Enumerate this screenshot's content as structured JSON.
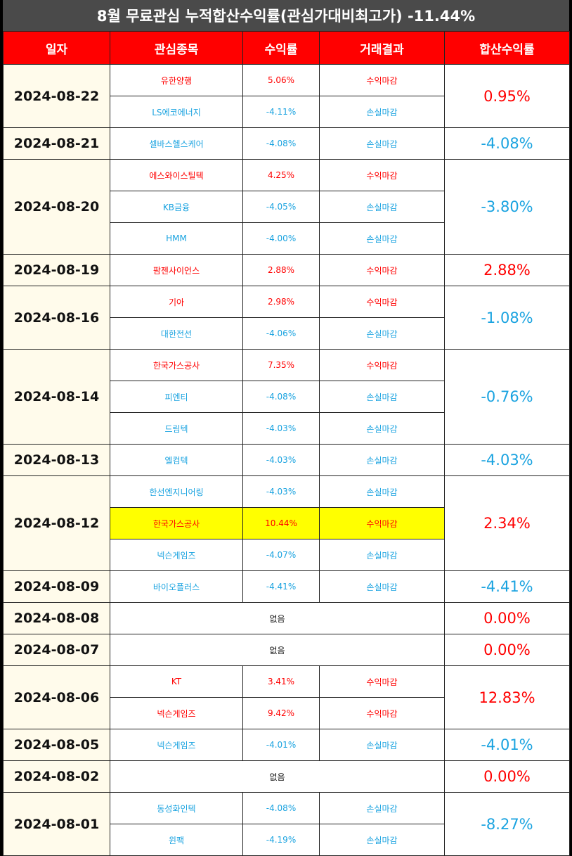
{
  "title": "8월 무료관심 누적합산수익률(관심가대비최고가) -11.44%",
  "headers": [
    "일자",
    "관심종목",
    "수익률",
    "거래결과",
    "합산수익률"
  ],
  "colors": {
    "gain": "#ff0000",
    "loss": "#1aa3e0",
    "header_bg": "#ff0000",
    "highlight": "#ffff00",
    "date_bg": "#fffbeb"
  },
  "groups": [
    {
      "date": "2024-08-22",
      "total": "0.95%",
      "total_type": "gain",
      "rows": [
        {
          "name": "유한양행",
          "rate": "5.06%",
          "result": "수익마감",
          "type": "gain"
        },
        {
          "name": "LS에코에너지",
          "rate": "-4.11%",
          "result": "손실마감",
          "type": "loss"
        }
      ]
    },
    {
      "date": "2024-08-21",
      "total": "-4.08%",
      "total_type": "loss",
      "rows": [
        {
          "name": "셀바스헬스케어",
          "rate": "-4.08%",
          "result": "손실마감",
          "type": "loss"
        }
      ]
    },
    {
      "date": "2024-08-20",
      "total": "-3.80%",
      "total_type": "loss",
      "rows": [
        {
          "name": "에스와이스틸텍",
          "rate": "4.25%",
          "result": "수익마감",
          "type": "gain"
        },
        {
          "name": "KB금융",
          "rate": "-4.05%",
          "result": "손실마감",
          "type": "loss"
        },
        {
          "name": "HMM",
          "rate": "-4.00%",
          "result": "손실마감",
          "type": "loss"
        }
      ]
    },
    {
      "date": "2024-08-19",
      "total": "2.88%",
      "total_type": "gain",
      "rows": [
        {
          "name": "팜젠사이언스",
          "rate": "2.88%",
          "result": "수익마감",
          "type": "gain"
        }
      ]
    },
    {
      "date": "2024-08-16",
      "total": "-1.08%",
      "total_type": "loss",
      "rows": [
        {
          "name": "기아",
          "rate": "2.98%",
          "result": "수익마감",
          "type": "gain"
        },
        {
          "name": "대한전선",
          "rate": "-4.06%",
          "result": "손실마감",
          "type": "loss"
        }
      ]
    },
    {
      "date": "2024-08-14",
      "total": "-0.76%",
      "total_type": "loss",
      "rows": [
        {
          "name": "한국가스공사",
          "rate": "7.35%",
          "result": "수익마감",
          "type": "gain"
        },
        {
          "name": "피엔티",
          "rate": "-4.08%",
          "result": "손실마감",
          "type": "loss"
        },
        {
          "name": "드림텍",
          "rate": "-4.03%",
          "result": "손실마감",
          "type": "loss"
        }
      ]
    },
    {
      "date": "2024-08-13",
      "total": "-4.03%",
      "total_type": "loss",
      "rows": [
        {
          "name": "엘컴텍",
          "rate": "-4.03%",
          "result": "손실마감",
          "type": "loss"
        }
      ]
    },
    {
      "date": "2024-08-12",
      "total": "2.34%",
      "total_type": "gain",
      "rows": [
        {
          "name": "한선엔지니어링",
          "rate": "-4.03%",
          "result": "손실마감",
          "type": "loss"
        },
        {
          "name": "한국가스공사",
          "rate": "10.44%",
          "result": "수익마감",
          "type": "gain",
          "highlight": true
        },
        {
          "name": "넥슨게임즈",
          "rate": "-4.07%",
          "result": "손실마감",
          "type": "loss"
        }
      ]
    },
    {
      "date": "2024-08-09",
      "total": "-4.41%",
      "total_type": "loss",
      "rows": [
        {
          "name": "바이오플러스",
          "rate": "-4.41%",
          "result": "손실마감",
          "type": "loss"
        }
      ]
    },
    {
      "date": "2024-08-08",
      "total": "0.00%",
      "total_type": "gain",
      "none": "없음",
      "rows": []
    },
    {
      "date": "2024-08-07",
      "total": "0.00%",
      "total_type": "gain",
      "none": "없음",
      "rows": []
    },
    {
      "date": "2024-08-06",
      "total": "12.83%",
      "total_type": "gain",
      "rows": [
        {
          "name": "KT",
          "rate": "3.41%",
          "result": "수익마감",
          "type": "gain"
        },
        {
          "name": "넥슨게임즈",
          "rate": "9.42%",
          "result": "수익마감",
          "type": "gain"
        }
      ]
    },
    {
      "date": "2024-08-05",
      "total": "-4.01%",
      "total_type": "loss",
      "rows": [
        {
          "name": "넥슨게임즈",
          "rate": "-4.01%",
          "result": "손실마감",
          "type": "loss"
        }
      ]
    },
    {
      "date": "2024-08-02",
      "total": "0.00%",
      "total_type": "gain",
      "none": "없음",
      "rows": []
    },
    {
      "date": "2024-08-01",
      "total": "-8.27%",
      "total_type": "loss",
      "rows": [
        {
          "name": "동성화인텍",
          "rate": "-4.08%",
          "result": "손실마감",
          "type": "loss"
        },
        {
          "name": "윈팩",
          "rate": "-4.19%",
          "result": "손실마감",
          "type": "loss"
        }
      ]
    }
  ]
}
